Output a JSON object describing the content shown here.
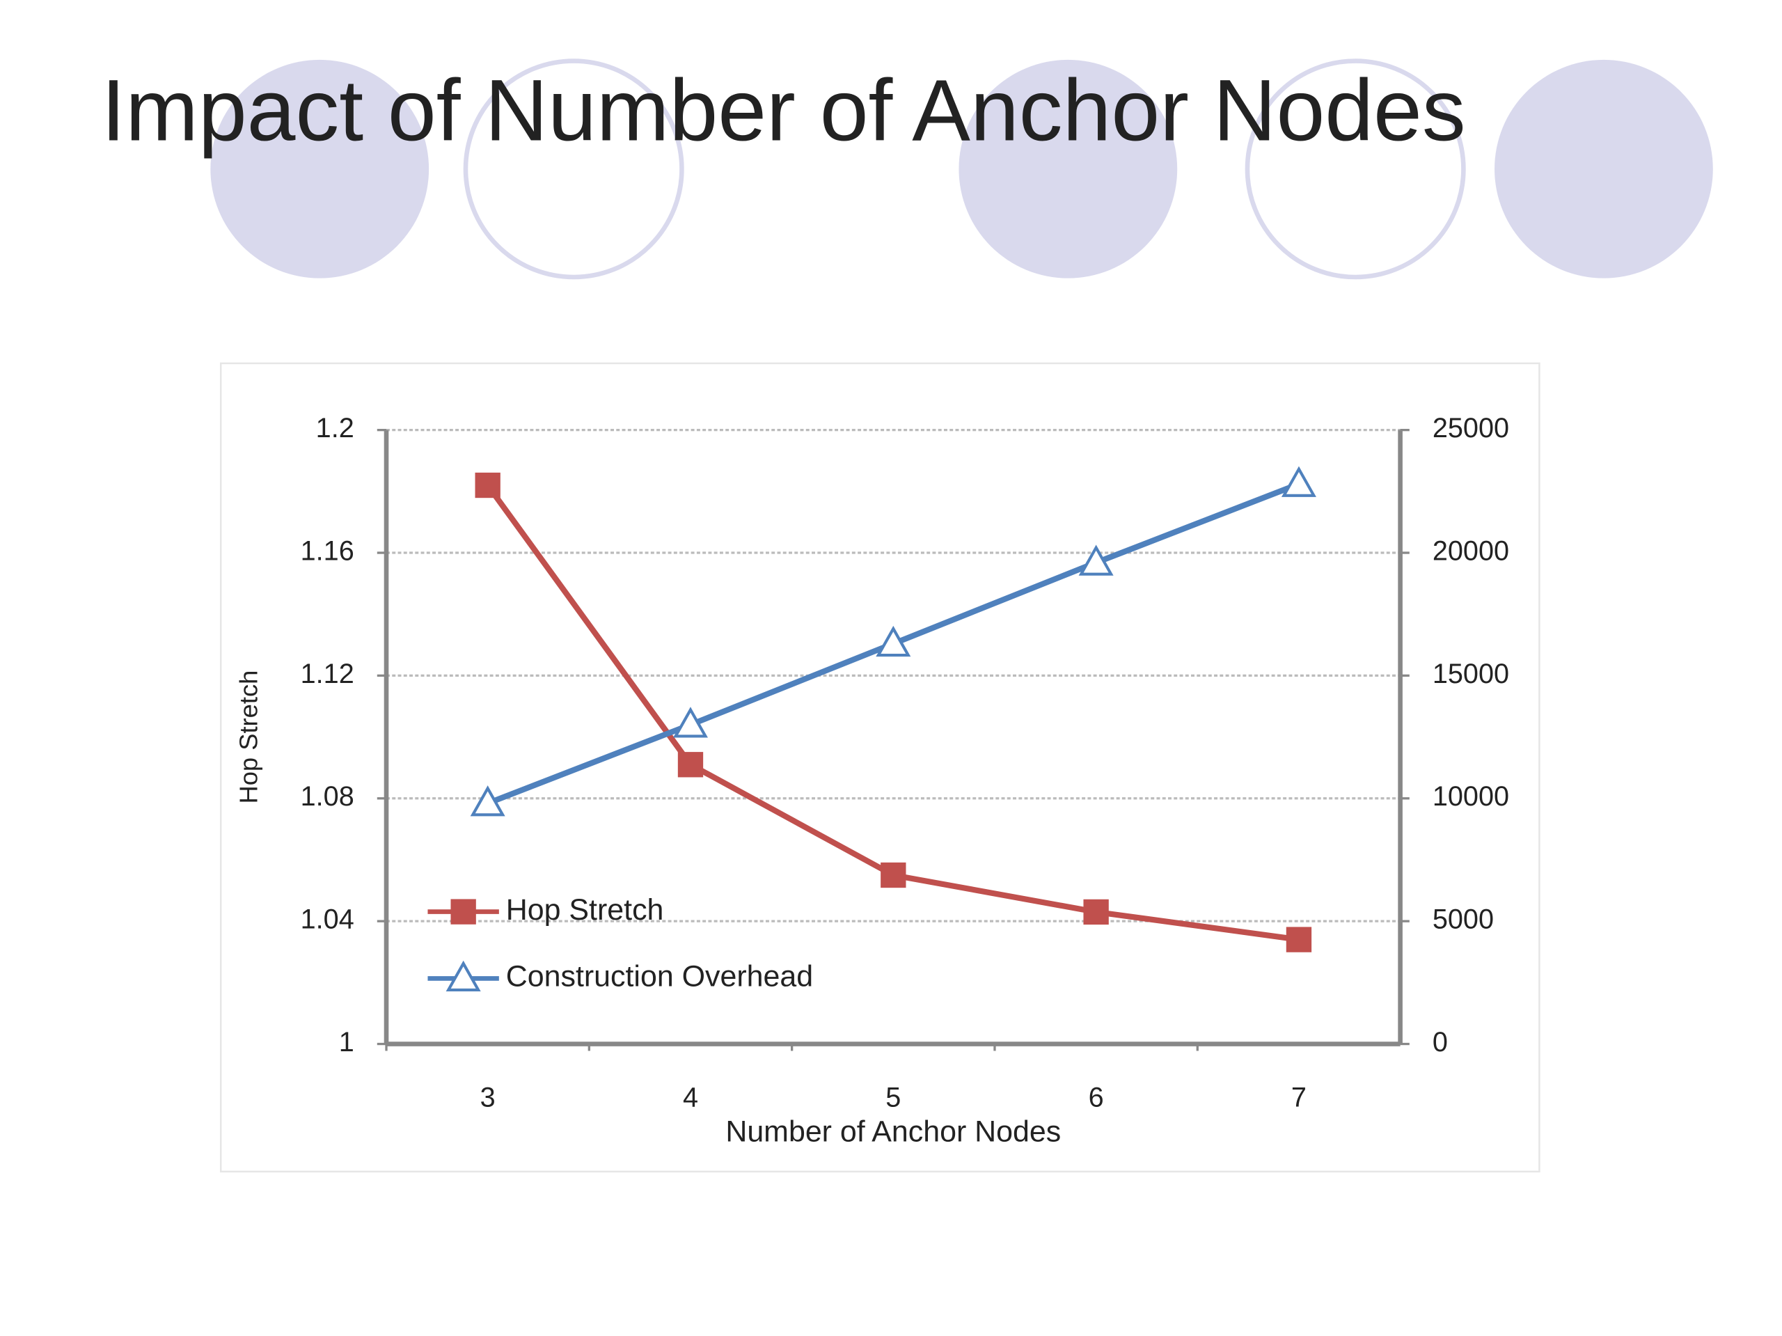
{
  "chart_data": {
    "type": "line",
    "title": "Impact of Number of Anchor Nodes",
    "x_label": "Number of Anchor Nodes",
    "y_label": "Hop Stretch",
    "categories": [
      "3",
      "4",
      "5",
      "6",
      "7"
    ],
    "series": [
      {
        "name": "Hop Stretch",
        "color": "#c0504d",
        "marker": "square",
        "values": [
          1.182,
          1.091,
          1.055,
          1.043,
          1.034
        ]
      },
      {
        "name": "Construction Overhead",
        "color": "#4f81bd",
        "marker": "triangle",
        "axis": "y2",
        "values": [
          9800,
          13000,
          16300,
          19600,
          22800
        ]
      }
    ],
    "ylim": [
      1,
      1.2
    ],
    "yticks": [
      1,
      1.04,
      1.08,
      1.12,
      1.16,
      1.2
    ],
    "y2lim": [
      0,
      25000
    ],
    "y2ticks": [
      0,
      5000,
      10000,
      15000,
      20000,
      25000
    ],
    "grid": true,
    "legend": "lower-left"
  }
}
